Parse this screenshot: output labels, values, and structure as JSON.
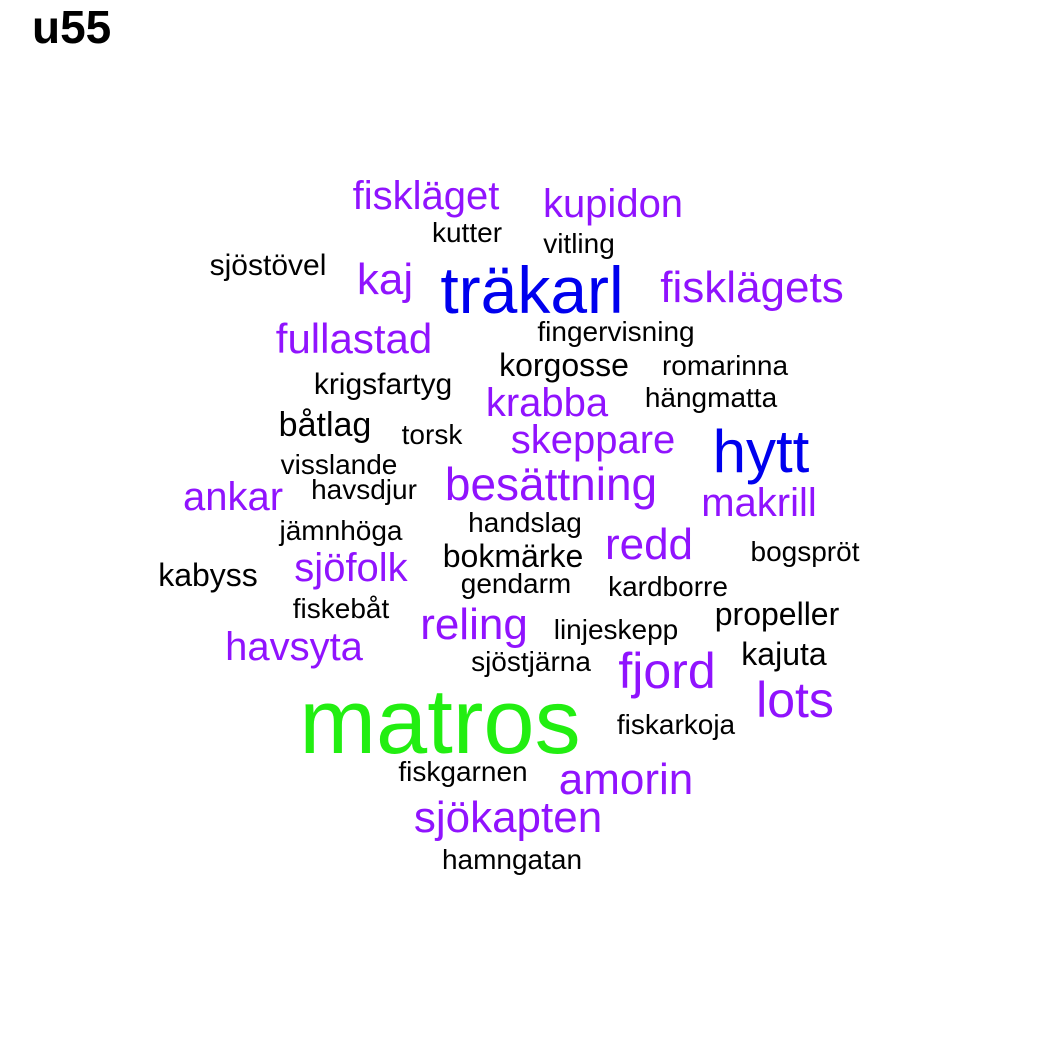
{
  "title": "u55",
  "palette": {
    "black": "#000000",
    "purple": "#9013fe",
    "blue": "#0000ee",
    "green": "#22ee11"
  },
  "words": [
    {
      "text": "matros",
      "color": "green"
    },
    {
      "text": "träkarl",
      "color": "blue"
    },
    {
      "text": "hytt",
      "color": "blue"
    },
    {
      "text": "fiskläget",
      "color": "purple"
    },
    {
      "text": "kupidon",
      "color": "purple"
    },
    {
      "text": "kutter",
      "color": "black"
    },
    {
      "text": "vitling",
      "color": "black"
    },
    {
      "text": "sjöstövel",
      "color": "black"
    },
    {
      "text": "kaj",
      "color": "purple"
    },
    {
      "text": "fisklägets",
      "color": "purple"
    },
    {
      "text": "fullastad",
      "color": "purple"
    },
    {
      "text": "fingervisning",
      "color": "black"
    },
    {
      "text": "korgosse",
      "color": "black"
    },
    {
      "text": "romarinna",
      "color": "black"
    },
    {
      "text": "krigsfartyg",
      "color": "black"
    },
    {
      "text": "krabba",
      "color": "purple"
    },
    {
      "text": "hängmatta",
      "color": "black"
    },
    {
      "text": "båtlag",
      "color": "black"
    },
    {
      "text": "torsk",
      "color": "black"
    },
    {
      "text": "skeppare",
      "color": "purple"
    },
    {
      "text": "visslande",
      "color": "black"
    },
    {
      "text": "ankar",
      "color": "purple"
    },
    {
      "text": "havsdjur",
      "color": "black"
    },
    {
      "text": "besättning",
      "color": "purple"
    },
    {
      "text": "makrill",
      "color": "purple"
    },
    {
      "text": "jämnhöga",
      "color": "black"
    },
    {
      "text": "handslag",
      "color": "black"
    },
    {
      "text": "redd",
      "color": "purple"
    },
    {
      "text": "bogspröt",
      "color": "black"
    },
    {
      "text": "kabyss",
      "color": "black"
    },
    {
      "text": "sjöfolk",
      "color": "purple"
    },
    {
      "text": "bokmärke",
      "color": "black"
    },
    {
      "text": "gendarm",
      "color": "black"
    },
    {
      "text": "kardborre",
      "color": "black"
    },
    {
      "text": "fiskebåt",
      "color": "black"
    },
    {
      "text": "propeller",
      "color": "black"
    },
    {
      "text": "reling",
      "color": "purple"
    },
    {
      "text": "linjeskepp",
      "color": "black"
    },
    {
      "text": "havsyta",
      "color": "purple"
    },
    {
      "text": "kajuta",
      "color": "black"
    },
    {
      "text": "sjöstjärna",
      "color": "black"
    },
    {
      "text": "fjord",
      "color": "purple"
    },
    {
      "text": "lots",
      "color": "purple"
    },
    {
      "text": "fiskarkoja",
      "color": "black"
    },
    {
      "text": "fiskgarnen",
      "color": "black"
    },
    {
      "text": "amorin",
      "color": "purple"
    },
    {
      "text": "sjökapten",
      "color": "purple"
    },
    {
      "text": "hamngatan",
      "color": "black"
    }
  ]
}
